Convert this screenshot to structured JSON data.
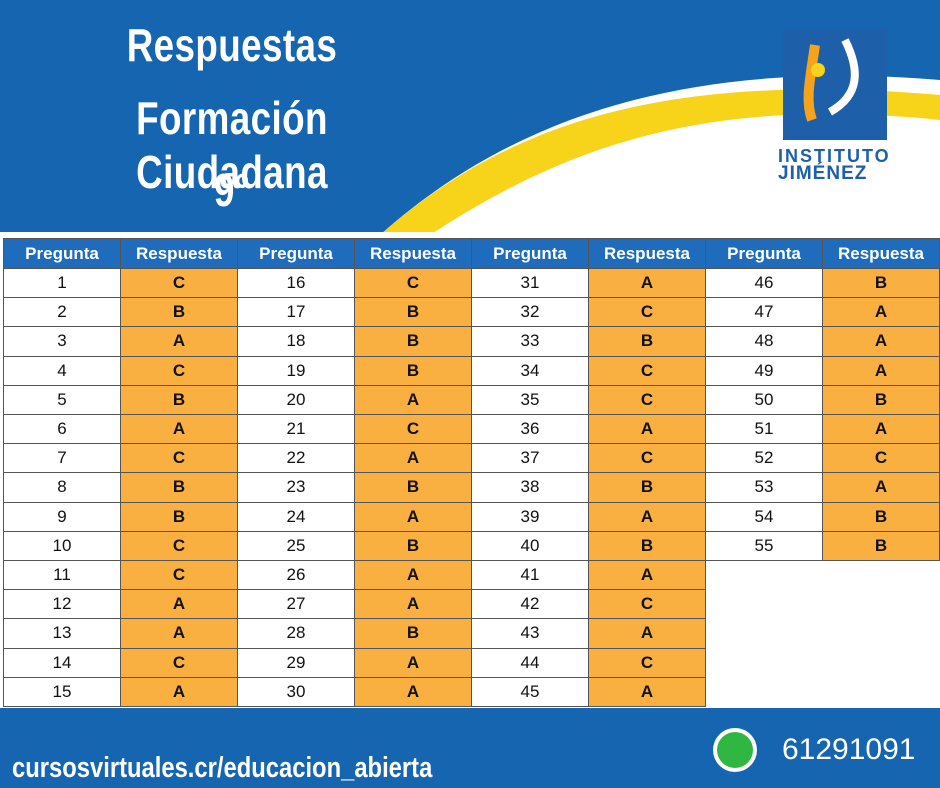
{
  "header": {
    "title": [
      "Respuestas",
      "Formación Ciudadana",
      "9°"
    ]
  },
  "logo": {
    "line1": "INSTITUTO",
    "line2": "JIMÉNEZ"
  },
  "table": {
    "groups": [
      {
        "header": [
          "Pregunta",
          "Respuesta"
        ],
        "rows": [
          [
            1,
            "C"
          ],
          [
            2,
            "B"
          ],
          [
            3,
            "A"
          ],
          [
            4,
            "C"
          ],
          [
            5,
            "B"
          ],
          [
            6,
            "A"
          ],
          [
            7,
            "C"
          ],
          [
            8,
            "B"
          ],
          [
            9,
            "B"
          ],
          [
            10,
            "C"
          ],
          [
            11,
            "C"
          ],
          [
            12,
            "A"
          ],
          [
            13,
            "A"
          ],
          [
            14,
            "C"
          ],
          [
            15,
            "A"
          ]
        ]
      },
      {
        "header": [
          "Pregunta",
          "Respuesta"
        ],
        "rows": [
          [
            16,
            "C"
          ],
          [
            17,
            "B"
          ],
          [
            18,
            "B"
          ],
          [
            19,
            "B"
          ],
          [
            20,
            "A"
          ],
          [
            21,
            "C"
          ],
          [
            22,
            "A"
          ],
          [
            23,
            "B"
          ],
          [
            24,
            "A"
          ],
          [
            25,
            "B"
          ],
          [
            26,
            "A"
          ],
          [
            27,
            "A"
          ],
          [
            28,
            "B"
          ],
          [
            29,
            "A"
          ],
          [
            30,
            "A"
          ]
        ]
      },
      {
        "header": [
          "Pregunta",
          "Respuesta"
        ],
        "rows": [
          [
            31,
            "A"
          ],
          [
            32,
            "C"
          ],
          [
            33,
            "B"
          ],
          [
            34,
            "C"
          ],
          [
            35,
            "C"
          ],
          [
            36,
            "A"
          ],
          [
            37,
            "C"
          ],
          [
            38,
            "B"
          ],
          [
            39,
            "A"
          ],
          [
            40,
            "B"
          ],
          [
            41,
            "A"
          ],
          [
            42,
            "C"
          ],
          [
            43,
            "A"
          ],
          [
            44,
            "C"
          ],
          [
            45,
            "A"
          ]
        ]
      },
      {
        "header": [
          "Pregunta",
          "Respuesta"
        ],
        "rows": [
          [
            46,
            "B"
          ],
          [
            47,
            "A"
          ],
          [
            48,
            "A"
          ],
          [
            49,
            "A"
          ],
          [
            50,
            "B"
          ],
          [
            51,
            "A"
          ],
          [
            52,
            "C"
          ],
          [
            53,
            "A"
          ],
          [
            54,
            "B"
          ],
          [
            55,
            "B"
          ]
        ]
      }
    ]
  },
  "footer": {
    "url": "cursosvirtuales.cr/educacion_abierta",
    "phone": "61291091"
  }
}
